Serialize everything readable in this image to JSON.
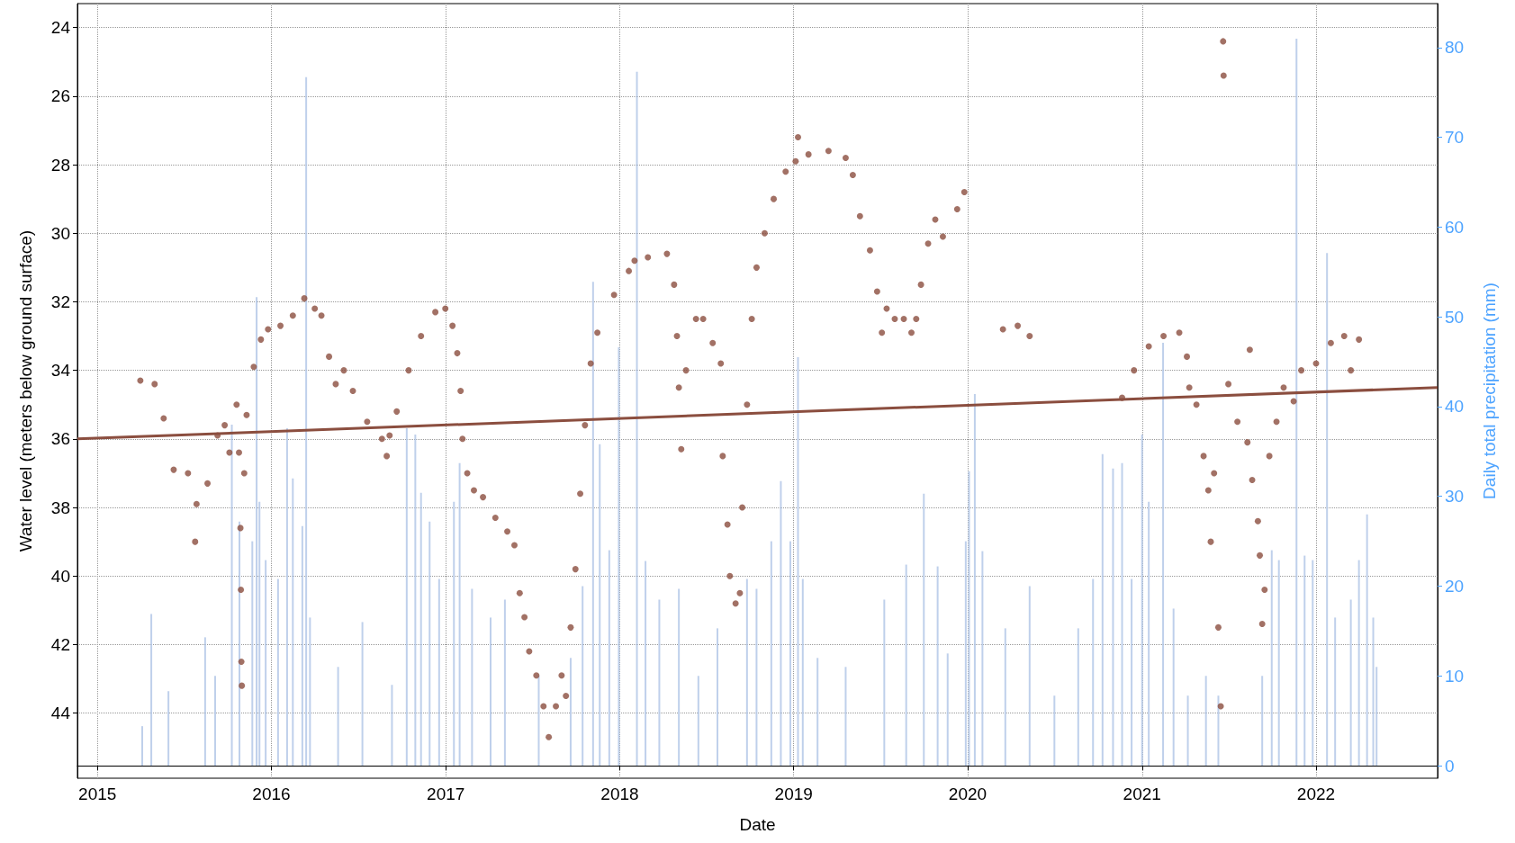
{
  "chart_data": {
    "type": "scatter",
    "xlabel": "Date",
    "ylabel": "Water level (meters below ground surface)",
    "y2label": "Daily total precipitation (mm)",
    "xlim": [
      "2014-11-20",
      "2022-09-13"
    ],
    "xticks": [
      {
        "value": "2015-01-01",
        "label": "2015"
      },
      {
        "value": "2016-01-01",
        "label": "2016"
      },
      {
        "value": "2017-01-01",
        "label": "2017"
      },
      {
        "value": "2018-01-01",
        "label": "2018"
      },
      {
        "value": "2019-01-01",
        "label": "2019"
      },
      {
        "value": "2020-01-01",
        "label": "2020"
      },
      {
        "value": "2021-01-01",
        "label": "2021"
      },
      {
        "value": "2022-01-01",
        "label": "2022"
      }
    ],
    "ylim": [
      45.9,
      23.3
    ],
    "yticks": [
      24,
      26,
      28,
      30,
      32,
      34,
      36,
      38,
      40,
      42,
      44
    ],
    "y2lim": [
      -1.4,
      84.9
    ],
    "y2ticks": [
      0,
      10,
      20,
      30,
      40,
      50,
      60,
      70,
      80
    ],
    "grid": true,
    "marker": "circle",
    "series": [
      {
        "type": "bar",
        "axis": "y2",
        "color": "#b4c8e8",
        "x": [
          "2015-04-05",
          "2015-04-24",
          "2015-05-30",
          "2015-08-15",
          "2015-09-05",
          "2015-10-10",
          "2015-10-26",
          "2015-11-22",
          "2015-12-01",
          "2015-12-07",
          "2015-12-20",
          "2016-01-15",
          "2016-02-03",
          "2016-02-15",
          "2016-03-06",
          "2016-03-14",
          "2016-03-22",
          "2016-05-20",
          "2016-07-10",
          "2016-09-10",
          "2016-10-11",
          "2016-10-29",
          "2016-11-10",
          "2016-11-28",
          "2016-12-18",
          "2017-01-18",
          "2017-01-30",
          "2017-02-25",
          "2017-04-05",
          "2017-05-05",
          "2017-07-15",
          "2017-09-20",
          "2017-10-15",
          "2017-11-06",
          "2017-11-20",
          "2017-12-10",
          "2017-12-30",
          "2018-02-06",
          "2018-02-24",
          "2018-03-25",
          "2018-05-05",
          "2018-06-15",
          "2018-07-25",
          "2018-09-25",
          "2018-10-15",
          "2018-11-15",
          "2018-12-05",
          "2018-12-25",
          "2019-01-10",
          "2019-01-20",
          "2019-02-20",
          "2019-04-20",
          "2019-07-10",
          "2019-08-25",
          "2019-10-01",
          "2019-10-30",
          "2019-11-20",
          "2019-12-28",
          "2020-01-04",
          "2020-01-16",
          "2020-02-01",
          "2020-03-20",
          "2020-05-10",
          "2020-07-01",
          "2020-08-20",
          "2020-09-20",
          "2020-10-10",
          "2020-11-01",
          "2020-11-20",
          "2020-12-10",
          "2021-01-01",
          "2021-01-15",
          "2021-02-14",
          "2021-03-08",
          "2021-04-07",
          "2021-05-15",
          "2021-06-10",
          "2021-09-10",
          "2021-09-30",
          "2021-10-15",
          "2021-11-21",
          "2021-12-08",
          "2021-12-25",
          "2022-01-24",
          "2022-02-10",
          "2022-03-15",
          "2022-04-01",
          "2022-04-18",
          "2022-05-01",
          "2022-05-08"
        ],
        "values": [
          4.4,
          16.9,
          8.3,
          14.3,
          10,
          38,
          27.2,
          25,
          52.2,
          29.4,
          22.9,
          20.8,
          37.6,
          32,
          26.7,
          76.7,
          16.5,
          11,
          16,
          9,
          37.6,
          36.9,
          30.4,
          27.2,
          20.8,
          29.4,
          33.7,
          19.7,
          16.5,
          18.5,
          10,
          12,
          20,
          53.9,
          35.8,
          24,
          46.6,
          77.3,
          22.8,
          18.5,
          19.7,
          10,
          15.3,
          20.8,
          19.7,
          25,
          31.7,
          25,
          45.5,
          20.8,
          12,
          11,
          18.5,
          22.4,
          30.3,
          22.2,
          12.5,
          25,
          32.8,
          41.4,
          23.9,
          15.3,
          20,
          7.8,
          15.3,
          20.8,
          34.7,
          33.1,
          33.7,
          20.8,
          36.9,
          29.4,
          47.1,
          17.5,
          7.8,
          10,
          7.8,
          10,
          24,
          22.9,
          81,
          23.4,
          22.9,
          57.1,
          16.5,
          18.5,
          22.9,
          28,
          16.5,
          11
        ]
      },
      {
        "color": "#8b4e3f",
        "x": [
          "2015-04-01",
          "2015-05-01",
          "2015-05-20",
          "2015-06-10",
          "2015-07-10",
          "2015-07-25",
          "2015-07-28",
          "2015-08-20",
          "2015-09-10",
          "2015-09-25",
          "2015-10-05",
          "2015-10-20",
          "2015-10-25",
          "2015-10-28",
          "2015-10-29",
          "2015-10-30",
          "2015-10-31",
          "2015-11-05",
          "2015-11-10",
          "2015-11-25",
          "2015-12-10",
          "2015-12-25",
          "2016-01-20",
          "2016-02-15",
          "2016-03-10",
          "2016-04-01",
          "2016-04-15",
          "2016-05-01",
          "2016-05-15",
          "2016-06-01",
          "2016-06-20",
          "2016-07-20",
          "2016-08-20",
          "2016-08-30",
          "2016-09-05",
          "2016-09-20",
          "2016-10-15",
          "2016-11-10",
          "2016-12-10",
          "2016-12-31",
          "2017-01-15",
          "2017-01-25",
          "2017-02-01",
          "2017-02-05",
          "2017-02-15",
          "2017-03-01",
          "2017-03-20",
          "2017-04-15",
          "2017-05-10",
          "2017-05-25",
          "2017-06-05",
          "2017-06-15",
          "2017-06-25",
          "2017-07-10",
          "2017-07-25",
          "2017-08-05",
          "2017-08-20",
          "2017-09-01",
          "2017-09-10",
          "2017-09-20",
          "2017-09-30",
          "2017-10-10",
          "2017-10-20",
          "2017-11-01",
          "2017-11-15",
          "2017-12-20",
          "2018-01-20",
          "2018-02-01",
          "2018-03-01",
          "2018-04-10",
          "2018-04-25",
          "2018-05-01",
          "2018-05-05",
          "2018-05-10",
          "2018-05-20",
          "2018-06-10",
          "2018-06-25",
          "2018-07-15",
          "2018-08-01",
          "2018-08-05",
          "2018-08-15",
          "2018-08-20",
          "2018-09-01",
          "2018-09-10",
          "2018-09-15",
          "2018-09-25",
          "2018-10-05",
          "2018-10-15",
          "2018-11-01",
          "2018-11-20",
          "2018-12-15",
          "2019-01-05",
          "2019-01-10",
          "2019-02-01",
          "2019-03-15",
          "2019-04-20",
          "2019-05-05",
          "2019-05-20",
          "2019-06-10",
          "2019-06-25",
          "2019-07-05",
          "2019-07-15",
          "2019-08-01",
          "2019-08-20",
          "2019-09-05",
          "2019-09-15",
          "2019-09-25",
          "2019-10-10",
          "2019-10-25",
          "2019-11-10",
          "2019-12-10",
          "2019-12-25",
          "2020-03-15",
          "2020-04-15",
          "2020-05-10",
          "2020-11-20",
          "2020-12-15",
          "2021-01-15",
          "2021-02-15",
          "2021-03-20",
          "2021-04-05",
          "2021-04-10",
          "2021-04-25",
          "2021-05-10",
          "2021-05-20",
          "2021-05-25",
          "2021-06-01",
          "2021-06-10",
          "2021-06-15",
          "2021-06-20",
          "2021-06-21",
          "2021-07-01",
          "2021-07-20",
          "2021-08-10",
          "2021-08-15",
          "2021-08-20",
          "2021-09-01",
          "2021-09-05",
          "2021-09-10",
          "2021-09-15",
          "2021-09-25",
          "2021-10-10",
          "2021-10-25",
          "2021-11-15",
          "2021-12-01",
          "2022-01-01",
          "2022-02-01",
          "2022-03-01",
          "2022-03-15",
          "2022-04-01"
        ],
        "values": [
          34.3,
          34.4,
          35.4,
          36.9,
          37.0,
          39.0,
          37.9,
          37.3,
          35.9,
          35.6,
          36.4,
          35.0,
          36.4,
          38.6,
          40.4,
          42.5,
          43.2,
          37.0,
          35.3,
          33.9,
          33.1,
          32.8,
          32.7,
          32.4,
          31.9,
          32.2,
          32.4,
          33.6,
          34.4,
          34.0,
          34.6,
          35.5,
          36.0,
          36.5,
          35.9,
          35.2,
          34.0,
          33.0,
          32.3,
          32.2,
          32.7,
          33.5,
          34.6,
          36.0,
          37.0,
          37.5,
          37.7,
          38.3,
          38.7,
          39.1,
          40.5,
          41.2,
          42.2,
          42.9,
          43.8,
          44.7,
          43.8,
          42.9,
          43.5,
          41.5,
          39.8,
          37.6,
          35.6,
          33.8,
          32.9,
          31.8,
          31.1,
          30.8,
          30.7,
          30.6,
          31.5,
          33.0,
          34.5,
          36.3,
          34.0,
          32.5,
          32.5,
          33.2,
          33.8,
          36.5,
          38.5,
          40.0,
          40.8,
          40.5,
          38.0,
          35.0,
          32.5,
          31.0,
          30.0,
          29.0,
          28.2,
          27.9,
          27.2,
          27.7,
          27.6,
          27.8,
          28.3,
          29.5,
          30.5,
          31.7,
          32.9,
          32.2,
          32.5,
          32.5,
          32.9,
          32.5,
          31.5,
          30.3,
          29.6,
          30.1,
          29.3,
          28.8,
          32.8,
          32.7,
          33.0,
          34.8,
          34.0,
          33.3,
          33.0,
          32.9,
          33.6,
          34.5,
          35.0,
          36.5,
          37.5,
          39.0,
          37.0,
          41.5,
          43.8,
          24.4,
          25.4,
          34.4,
          35.5,
          36.1,
          33.4,
          37.2,
          38.4,
          39.4,
          41.4,
          40.4,
          36.5,
          35.5,
          34.5,
          34.9,
          34.0,
          33.8,
          33.2,
          33.0,
          34.0,
          33.1
        ]
      },
      {
        "type": "line",
        "color": "#8b4e3f",
        "marker": "none",
        "x": [
          "2014-11-20",
          "2022-09-13"
        ],
        "values": [
          36.0,
          34.5
        ]
      }
    ]
  }
}
